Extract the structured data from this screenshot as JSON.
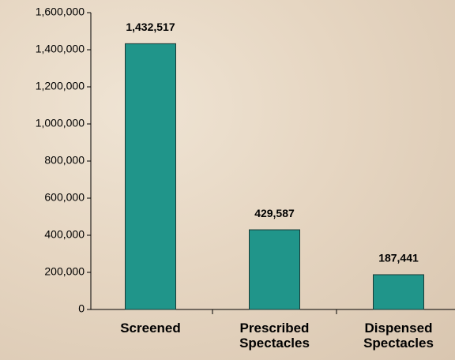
{
  "chart_data": {
    "type": "bar",
    "categories": [
      "Screened",
      "Prescribed Spectacles",
      "Dispensed Spectacles"
    ],
    "values": [
      1432517,
      429587,
      187441
    ],
    "value_labels": [
      "1,432,517",
      "429,587",
      "187,441"
    ],
    "color": "#20958a",
    "ylim": [
      0,
      1600000
    ],
    "yticks": [
      0,
      {
        "value": 200000,
        "label": "200,000"
      },
      {
        "value": 400000,
        "label": "400,000"
      },
      {
        "value": 600000,
        "label": "600,000"
      },
      {
        "value": 800000,
        "label": "800,000"
      },
      {
        "value": 1000000,
        "label": "1,000,000"
      },
      {
        "value": 1200000,
        "label": "1,200,000"
      },
      {
        "value": 1400000,
        "label": "1,400,000"
      },
      {
        "value": 1600000,
        "label": "1,600,000"
      }
    ],
    "grid": false
  }
}
